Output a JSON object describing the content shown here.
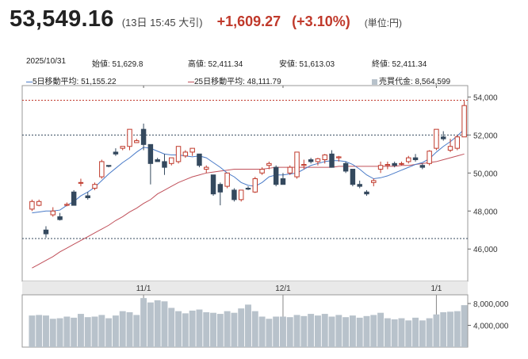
{
  "header": {
    "price": "53,549.16",
    "timestamp": "(13日 15:45 大引)",
    "change": "+1,609.27",
    "change_pct": "(+3.10%)",
    "unit": "(単位:円)"
  },
  "info": {
    "date": "2025/10/31",
    "open": "始値: 51,629.8",
    "high": "高値: 52,411.34",
    "low": "安値: 51,613.03",
    "close": "終値: 52,411.34",
    "ma5": "5日移動平均: 51,155.22",
    "ma25": "25日移動平均: 48,111.79",
    "volume": "売買代金: 8,564,599"
  },
  "colors": {
    "up": "#c0392b",
    "down": "#34495e",
    "ma5": "#4a7bc8",
    "ma25": "#c0505a",
    "volume": "#b8c2cb"
  },
  "chart_data": {
    "type": "candlestick",
    "price_ticks": [
      "54,000",
      "52,000",
      "50,000",
      "48,000",
      "46,000"
    ],
    "price_tick_values": [
      54000,
      52000,
      50000,
      48000,
      46000
    ],
    "volume_ticks": [
      "8,000,000",
      "4,000,000"
    ],
    "volume_tick_values": [
      8000000,
      4000000
    ],
    "x_labels": [
      "11/1",
      "12/1",
      "1/1"
    ],
    "x_label_index": [
      16,
      36,
      58
    ],
    "ylim": [
      44300,
      54600
    ],
    "reference_lines": [
      53830,
      52000,
      46550
    ],
    "candles": [
      [
        48100,
        48600,
        48000,
        48500
      ],
      [
        48300,
        48600,
        48250,
        48500
      ],
      [
        47000,
        47200,
        46600,
        46800
      ],
      [
        47800,
        48200,
        47700,
        48000
      ],
      [
        47700,
        47900,
        47500,
        47550
      ],
      [
        48300,
        48450,
        48250,
        48350
      ],
      [
        49000,
        49100,
        48300,
        48300
      ],
      [
        49500,
        49700,
        49300,
        49500
      ],
      [
        48800,
        49000,
        48600,
        48700
      ],
      [
        49200,
        49500,
        49100,
        49400
      ],
      [
        49800,
        50700,
        49700,
        50600
      ],
      [
        50400,
        50400,
        50300,
        50350
      ],
      [
        51100,
        51300,
        50900,
        51000
      ],
      [
        51300,
        51400,
        51200,
        51400
      ],
      [
        51400,
        52300,
        51200,
        52300
      ],
      [
        51600,
        51800,
        51600,
        51700
      ],
      [
        52300,
        52600,
        51200,
        51500
      ],
      [
        51500,
        51500,
        49400,
        50500
      ],
      [
        50700,
        50800,
        50600,
        50600
      ],
      [
        50600,
        51000,
        49900,
        50300
      ],
      [
        50500,
        50800,
        50400,
        50800
      ],
      [
        50600,
        51400,
        50500,
        51400
      ],
      [
        50900,
        51200,
        50800,
        51100
      ],
      [
        51100,
        51300,
        50900,
        51300
      ],
      [
        51000,
        51000,
        50300,
        50400
      ],
      [
        50200,
        50400,
        50000,
        50300
      ],
      [
        49900,
        49900,
        48800,
        48900
      ],
      [
        49400,
        49500,
        48300,
        49000
      ],
      [
        49300,
        50000,
        49200,
        50000
      ],
      [
        49100,
        49200,
        48500,
        48600
      ],
      [
        48600,
        49100,
        48500,
        49100
      ],
      [
        49200,
        49300,
        49100,
        49150
      ],
      [
        49000,
        49800,
        48950,
        49700
      ],
      [
        50000,
        50300,
        49900,
        50200
      ],
      [
        50400,
        50600,
        50200,
        50500
      ],
      [
        50300,
        50400,
        49300,
        49400
      ],
      [
        49700,
        50000,
        49400,
        49400
      ],
      [
        50000,
        50400,
        49900,
        50300
      ],
      [
        49800,
        51100,
        49700,
        51100
      ],
      [
        50400,
        50700,
        50200,
        50450
      ],
      [
        50700,
        50800,
        50500,
        50600
      ],
      [
        50600,
        50800,
        50400,
        50750
      ],
      [
        50700,
        51000,
        50500,
        50950
      ],
      [
        51000,
        51200,
        50300,
        50300
      ],
      [
        50800,
        50900,
        50600,
        50850
      ],
      [
        50500,
        50600,
        50000,
        50100
      ],
      [
        50200,
        50200,
        49300,
        49400
      ],
      [
        49400,
        49600,
        49200,
        49300
      ],
      [
        49000,
        49100,
        48800,
        48900
      ],
      [
        49500,
        49700,
        49300,
        49600
      ],
      [
        50200,
        50600,
        50000,
        50400
      ],
      [
        50400,
        50600,
        50200,
        50450
      ],
      [
        50500,
        50600,
        50300,
        50400
      ],
      [
        50500,
        50600,
        50400,
        50500
      ],
      [
        50600,
        50900,
        50500,
        50800
      ],
      [
        50800,
        51000,
        50600,
        50700
      ],
      [
        50400,
        50500,
        50200,
        50300
      ],
      [
        50500,
        51200,
        50400,
        51150
      ],
      [
        51300,
        52300,
        51200,
        52300
      ],
      [
        51900,
        52200,
        51700,
        51800
      ],
      [
        51200,
        51800,
        51100,
        51400
      ],
      [
        51300,
        52000,
        51200,
        51900
      ],
      [
        51900,
        53800,
        51900,
        53550
      ]
    ],
    "ma5": [
      47900,
      47950,
      48000,
      48000,
      48050,
      48300,
      48500,
      48800,
      49000,
      49250,
      49600,
      49950,
      50250,
      50550,
      50800,
      51100,
      51350,
      51300,
      51150,
      51000,
      50950,
      50950,
      50900,
      50850,
      50900,
      50800,
      50550,
      50300,
      50000,
      49800,
      49500,
      49350,
      49300,
      49500,
      49800,
      49900,
      49900,
      49950,
      50000,
      50200,
      50400,
      50500,
      50600,
      50650,
      50650,
      50600,
      50450,
      50200,
      49900,
      49700,
      49750,
      49850,
      50000,
      50150,
      50300,
      50450,
      50550,
      50750,
      51100,
      51400,
      51650,
      51950,
      52300
    ],
    "ma25": [
      45000,
      45200,
      45400,
      45600,
      45850,
      46050,
      46250,
      46450,
      46650,
      46850,
      47050,
      47250,
      47500,
      47700,
      47950,
      48150,
      48400,
      48600,
      48900,
      49100,
      49300,
      49500,
      49650,
      49800,
      49900,
      50000,
      50050,
      50100,
      50150,
      50200,
      50200,
      50200,
      50200,
      50200,
      50250,
      50300,
      50300,
      50300,
      50300,
      50300,
      50300,
      50300,
      50300,
      50300,
      50350,
      50350,
      50350,
      50350,
      50350,
      50350,
      50350,
      50350,
      50350,
      50400,
      50400,
      50450,
      50500,
      50550,
      50600,
      50700,
      50800,
      50900,
      51000
    ],
    "volume": [
      5800000,
      5900000,
      5800000,
      5200000,
      5300000,
      5600000,
      5400000,
      6100000,
      5500000,
      5600000,
      5900000,
      5300000,
      5800000,
      6600000,
      6400000,
      5900000,
      9000000,
      8200000,
      8600000,
      8400000,
      7200000,
      6600000,
      6200000,
      6700000,
      6900000,
      6400000,
      6300000,
      6100000,
      6600000,
      6300000,
      7100000,
      7800000,
      6600000,
      5600000,
      5200000,
      5600000,
      5600000,
      5500000,
      5900000,
      5700000,
      6100000,
      5800000,
      6100000,
      5600000,
      5900000,
      5500000,
      5800000,
      5400000,
      5700000,
      5900000,
      6300000,
      5300000,
      5100000,
      5300000,
      4900000,
      5400000,
      4900000,
      5300000,
      6000000,
      6400000,
      6500000,
      6600000,
      7700000
    ],
    "vlim": [
      0,
      9600000
    ]
  }
}
